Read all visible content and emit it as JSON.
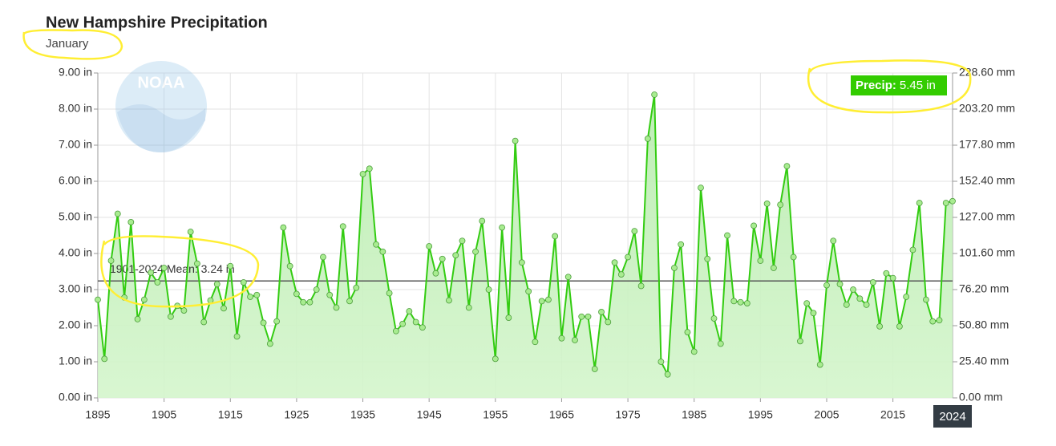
{
  "chart_data": {
    "type": "line",
    "title": "New Hampshire Precipitation",
    "subtitle": "January",
    "watermark": "NOAA",
    "x": [
      1895,
      1896,
      1897,
      1898,
      1899,
      1900,
      1901,
      1902,
      1903,
      1904,
      1905,
      1906,
      1907,
      1908,
      1909,
      1910,
      1911,
      1912,
      1913,
      1914,
      1915,
      1916,
      1917,
      1918,
      1919,
      1920,
      1921,
      1922,
      1923,
      1924,
      1925,
      1926,
      1927,
      1928,
      1929,
      1930,
      1931,
      1932,
      1933,
      1934,
      1935,
      1936,
      1937,
      1938,
      1939,
      1940,
      1941,
      1942,
      1943,
      1944,
      1945,
      1946,
      1947,
      1948,
      1949,
      1950,
      1951,
      1952,
      1953,
      1954,
      1955,
      1956,
      1957,
      1958,
      1959,
      1960,
      1961,
      1962,
      1963,
      1964,
      1965,
      1966,
      1967,
      1968,
      1969,
      1970,
      1971,
      1972,
      1973,
      1974,
      1975,
      1976,
      1977,
      1978,
      1979,
      1980,
      1981,
      1982,
      1983,
      1984,
      1985,
      1986,
      1987,
      1988,
      1989,
      1990,
      1991,
      1992,
      1993,
      1994,
      1995,
      1996,
      1997,
      1998,
      1999,
      2000,
      2001,
      2002,
      2003,
      2004,
      2005,
      2006,
      2007,
      2008,
      2009,
      2010,
      2011,
      2012,
      2013,
      2014,
      2015,
      2016,
      2017,
      2018,
      2019,
      2020,
      2021,
      2022,
      2023,
      2024
    ],
    "series": [
      {
        "name": "Precip",
        "color": "#33cc11",
        "values": [
          2.72,
          1.08,
          3.8,
          5.1,
          2.78,
          4.87,
          2.18,
          2.72,
          3.47,
          3.2,
          3.6,
          2.25,
          2.55,
          2.42,
          4.6,
          3.72,
          2.1,
          2.7,
          3.15,
          2.48,
          3.65,
          1.7,
          3.2,
          2.8,
          2.85,
          2.08,
          1.5,
          2.12,
          4.72,
          3.65,
          2.88,
          2.65,
          2.65,
          3.0,
          3.9,
          2.85,
          2.5,
          4.75,
          2.68,
          3.05,
          6.2,
          6.35,
          4.25,
          4.05,
          2.9,
          1.85,
          2.05,
          2.4,
          2.1,
          1.95,
          4.2,
          3.45,
          3.85,
          2.7,
          3.95,
          4.35,
          2.5,
          4.05,
          4.9,
          3.0,
          1.08,
          4.72,
          2.22,
          7.12,
          3.75,
          2.95,
          1.55,
          2.68,
          2.72,
          4.48,
          1.65,
          3.35,
          1.6,
          2.25,
          2.25,
          0.8,
          2.38,
          2.1,
          3.75,
          3.42,
          3.9,
          4.62,
          3.1,
          7.18,
          8.4,
          1.0,
          0.65,
          3.6,
          4.25,
          1.82,
          1.28,
          5.82,
          3.85,
          2.2,
          1.5,
          4.5,
          2.68,
          2.65,
          2.62,
          4.77,
          3.8,
          5.38,
          3.6,
          5.35,
          6.42,
          3.9,
          1.57,
          2.62,
          2.35,
          0.92,
          3.12,
          4.35,
          3.15,
          2.58,
          3.0,
          2.75,
          2.58,
          3.2,
          1.98,
          3.45,
          3.32,
          1.98,
          2.8,
          4.1,
          5.4,
          2.72,
          2.12,
          2.15,
          5.4,
          5.45
        ]
      }
    ],
    "xlim": [
      1895,
      2024
    ],
    "xticks": [
      1895,
      1905,
      1915,
      1925,
      1935,
      1945,
      1955,
      1965,
      1975,
      1985,
      1995,
      2005,
      2015
    ],
    "ylim": [
      0,
      9
    ],
    "yticks": [
      {
        "value": 0,
        "label": "0.00 in"
      },
      {
        "value": 1,
        "label": "1.00 in"
      },
      {
        "value": 2,
        "label": "2.00 in"
      },
      {
        "value": 3,
        "label": "3.00 in"
      },
      {
        "value": 4,
        "label": "4.00 in"
      },
      {
        "value": 5,
        "label": "5.00 in"
      },
      {
        "value": 6,
        "label": "6.00 in"
      },
      {
        "value": 7,
        "label": "7.00 in"
      },
      {
        "value": 8,
        "label": "8.00 in"
      },
      {
        "value": 9,
        "label": "9.00 in"
      }
    ],
    "y2lim": [
      0,
      228.6
    ],
    "y2ticks": [
      {
        "value": 0,
        "label": "0.00 mm"
      },
      {
        "value": 25.4,
        "label": "25.40 mm"
      },
      {
        "value": 50.8,
        "label": "50.80 mm"
      },
      {
        "value": 76.2,
        "label": "76.20 mm"
      },
      {
        "value": 101.6,
        "label": "101.60 mm"
      },
      {
        "value": 127,
        "label": "127.00 mm"
      },
      {
        "value": 152.4,
        "label": "152.40 mm"
      },
      {
        "value": 177.8,
        "label": "177.80 mm"
      },
      {
        "value": 203.2,
        "label": "203.20 mm"
      },
      {
        "value": 228.6,
        "label": "228.60 mm"
      }
    ],
    "grid": true,
    "mean": {
      "value": 3.24,
      "label": "1901-2024 Mean: 3.24 in"
    },
    "tooltip": {
      "x": "2024",
      "label": "Precip:",
      "text": "5.45 in"
    }
  }
}
